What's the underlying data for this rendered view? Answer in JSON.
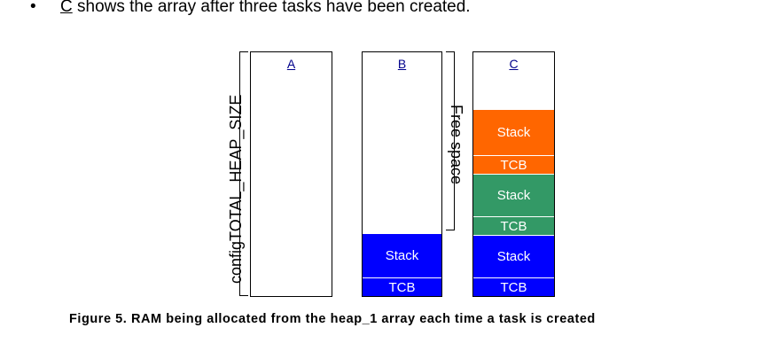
{
  "bullet": {
    "marker": "•",
    "lead": "C",
    "text": " shows the array after three tasks have been created."
  },
  "axis_label": "configTOTAL_HEAP_SIZE",
  "free_space_label": "Free space",
  "columns": [
    {
      "label": "A",
      "blocks": []
    },
    {
      "label": "B",
      "blocks": [
        {
          "text": "Stack",
          "color": "blue"
        },
        {
          "text": "TCB",
          "color": "blue"
        }
      ]
    },
    {
      "label": "C",
      "blocks": [
        {
          "text": "Stack",
          "color": "orange"
        },
        {
          "text": "TCB",
          "color": "orange"
        },
        {
          "text": "Stack",
          "color": "green"
        },
        {
          "text": "TCB",
          "color": "green"
        },
        {
          "text": "Stack",
          "color": "blue"
        },
        {
          "text": "TCB",
          "color": "blue"
        }
      ]
    }
  ],
  "caption": "Figure 5.  RAM being allocated from the heap_1 array each time a task is created"
}
